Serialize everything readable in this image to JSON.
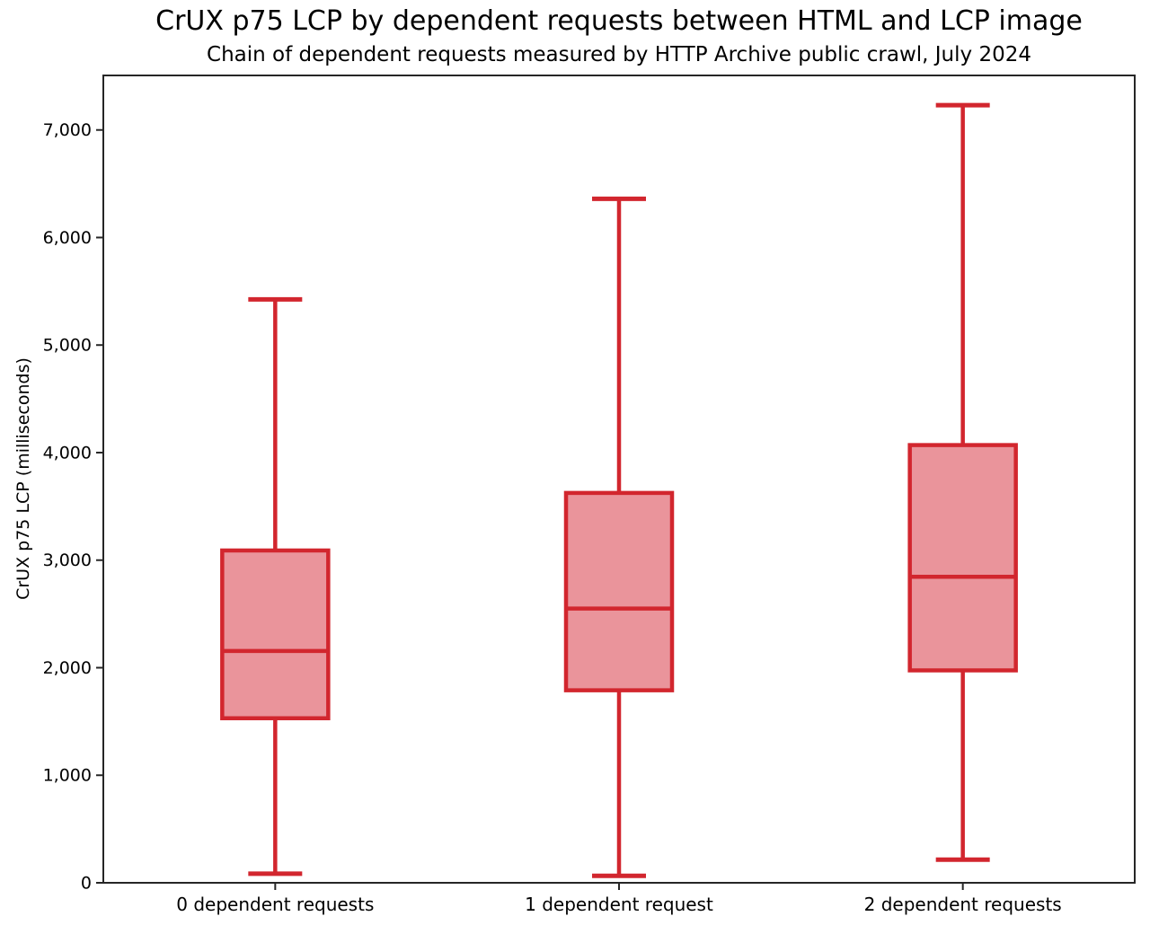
{
  "title": "CrUX p75 LCP by dependent requests between HTML and LCP image",
  "subtitle": "Chain of dependent requests measured by HTTP Archive public crawl, July 2024",
  "chart_data": {
    "type": "boxplot",
    "title": "CrUX p75 LCP by dependent requests between HTML and LCP image",
    "subtitle": "Chain of dependent requests measured by HTTP Archive public crawl, July 2024",
    "xlabel": "",
    "ylabel": "CrUX p75 LCP (milliseconds)",
    "categories": [
      "0 dependent requests",
      "1 dependent request",
      "2 dependent requests"
    ],
    "series": [
      {
        "name": "0 dependent requests",
        "whisker_low": 85,
        "q1": 1530,
        "median": 2155,
        "q3": 3090,
        "whisker_high": 5425
      },
      {
        "name": "1 dependent request",
        "whisker_low": 65,
        "q1": 1790,
        "median": 2550,
        "q3": 3625,
        "whisker_high": 6360
      },
      {
        "name": "2 dependent requests",
        "whisker_low": 215,
        "q1": 1975,
        "median": 2845,
        "q3": 4070,
        "whisker_high": 7230
      }
    ],
    "ylim": [
      0,
      7507
    ],
    "yticks": [
      0,
      1000,
      2000,
      3000,
      4000,
      5000,
      6000,
      7000
    ],
    "ytick_labels": [
      "0",
      "1,000",
      "2,000",
      "3,000",
      "4,000",
      "5,000",
      "6,000",
      "7,000"
    ],
    "grid": false,
    "legend": null,
    "colors": {
      "box_line": "#d2262e",
      "box_fill": "#ea949b",
      "axis": "#262626",
      "text": "#000000"
    }
  }
}
